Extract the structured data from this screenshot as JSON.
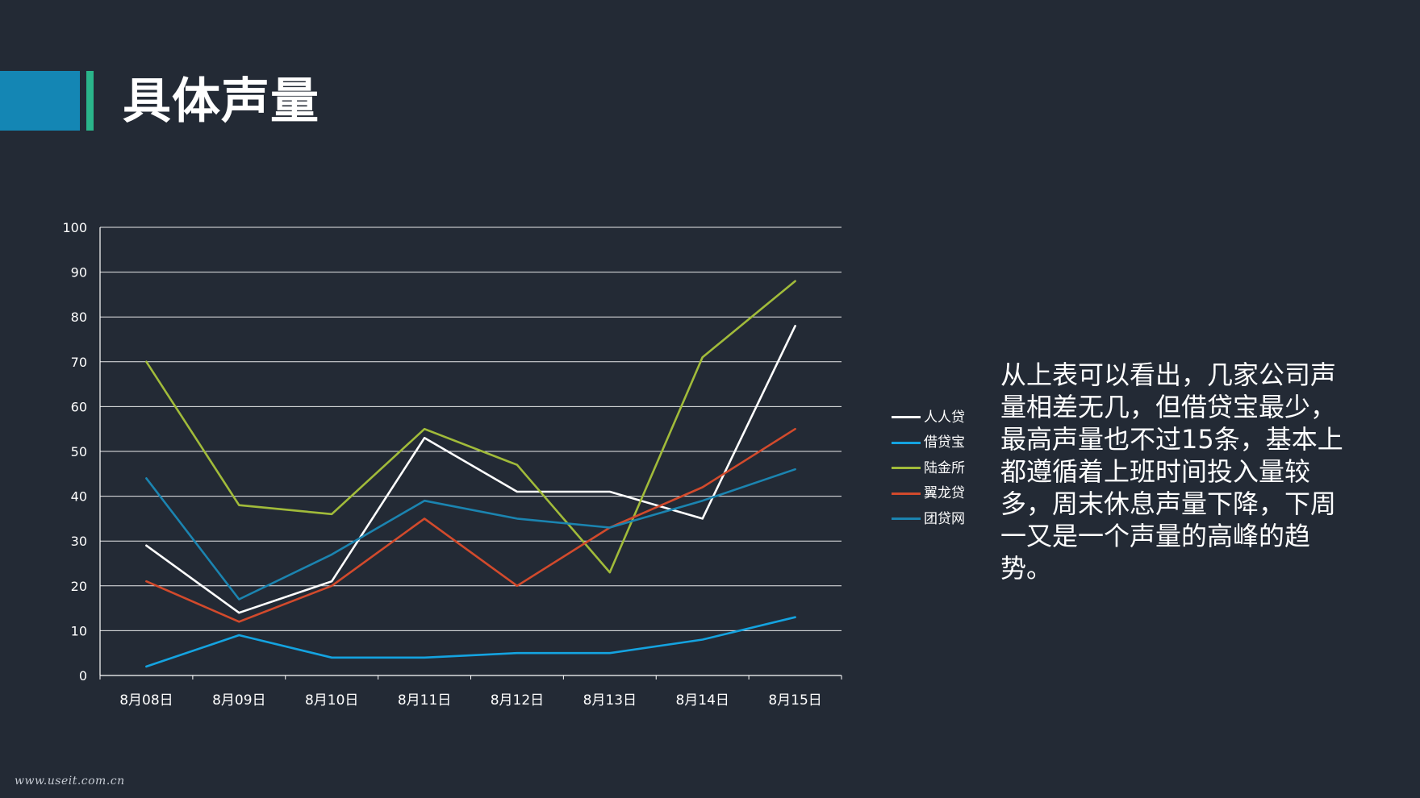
{
  "slide": {
    "title": "具体声量",
    "summary": "从上表可以看出，几家公司声量相差无几，但借贷宝最少，最高声量也不过15条，基本上都遵循着上班时间投入量较多，周末休息声量下降，下周一又是一个声量的高峰的趋势。",
    "watermark": "www.useit.com.cn",
    "colors": {
      "background": "#232a35",
      "title_block": "#1486b4",
      "title_stripe": "#2ab58a"
    }
  },
  "chart_data": {
    "type": "line",
    "categories": [
      "8月08日",
      "8月09日",
      "8月10日",
      "8月11日",
      "8月12日",
      "8月13日",
      "8月14日",
      "8月15日"
    ],
    "ylim": [
      0,
      100
    ],
    "yticks": [
      0,
      10,
      20,
      30,
      40,
      50,
      60,
      70,
      80,
      90,
      100
    ],
    "grid": true,
    "legend_position": "right",
    "series": [
      {
        "name": "人人贷",
        "color": "#ffffff",
        "values": [
          29,
          14,
          21,
          53,
          41,
          41,
          35,
          78
        ]
      },
      {
        "name": "借贷宝",
        "color": "#14a3e0",
        "values": [
          2,
          9,
          4,
          4,
          5,
          5,
          8,
          13
        ]
      },
      {
        "name": "陆金所",
        "color": "#a1bb3a",
        "values": [
          70,
          38,
          36,
          55,
          47,
          23,
          71,
          88
        ]
      },
      {
        "name": "翼龙贷",
        "color": "#d24a2c",
        "values": [
          21,
          12,
          20,
          35,
          20,
          33,
          42,
          55
        ]
      },
      {
        "name": "团贷网",
        "color": "#1b84b0",
        "values": [
          44,
          17,
          27,
          39,
          35,
          33,
          39,
          46
        ]
      }
    ]
  }
}
